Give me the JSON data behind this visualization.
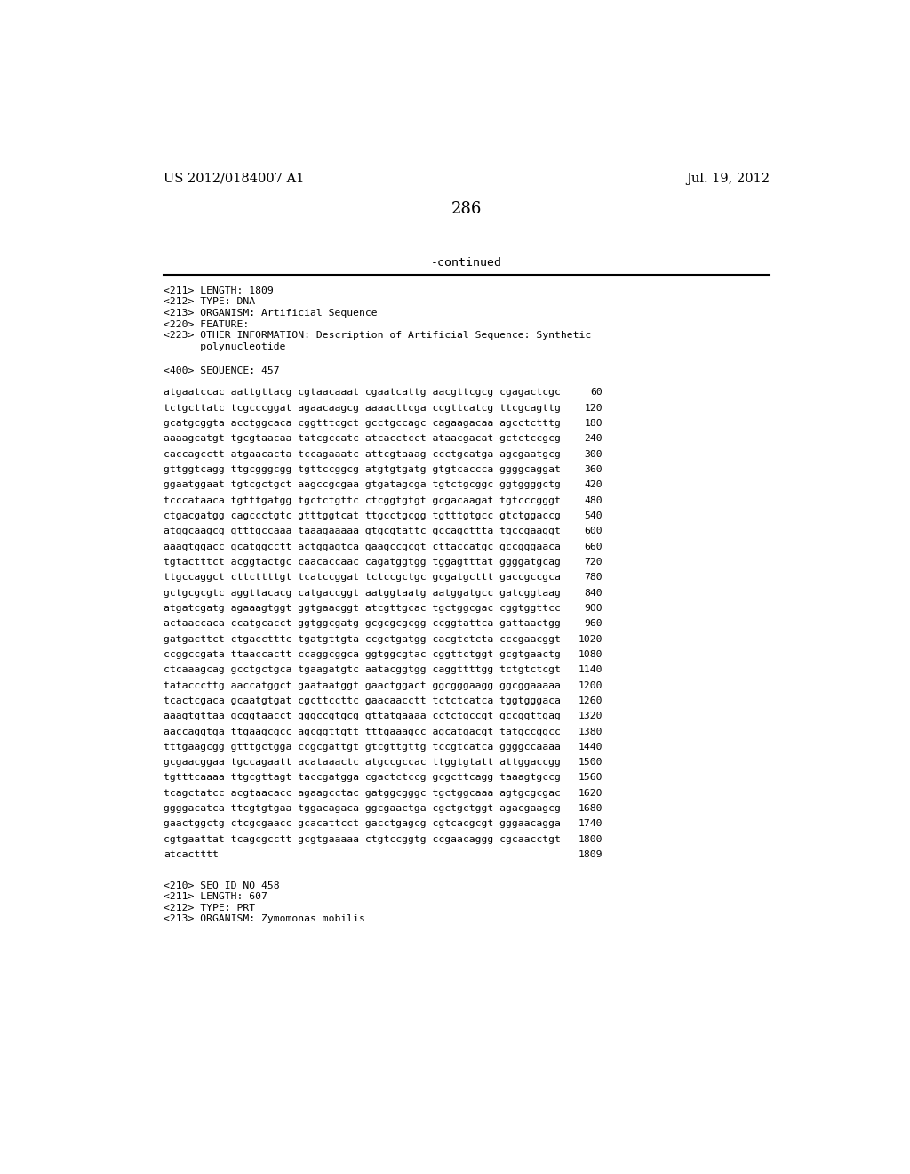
{
  "header_left": "US 2012/0184007 A1",
  "header_right": "Jul. 19, 2012",
  "page_number": "286",
  "continued_text": "-continued",
  "metadata_lines": [
    "<211> LENGTH: 1809",
    "<212> TYPE: DNA",
    "<213> ORGANISM: Artificial Sequence",
    "<220> FEATURE:",
    "<223> OTHER INFORMATION: Description of Artificial Sequence: Synthetic",
    "      polynucleotide"
  ],
  "sequence_header": "<400> SEQUENCE: 457",
  "sequence_lines": [
    [
      "atgaatccac aattgttacg cgtaacaaat cgaatcattg aacgttcgcg cgagactcgc",
      "60"
    ],
    [
      "tctgcttatc tcgcccggat agaacaagcg aaaacttcga ccgttcatcg ttcgcagttg",
      "120"
    ],
    [
      "gcatgcggta acctggcaca cggtttcgct gcctgccagc cagaagacaa agcctctttg",
      "180"
    ],
    [
      "aaaagcatgt tgcgtaacaa tatcgccatc atcacctcct ataacgacat gctctccgcg",
      "240"
    ],
    [
      "caccagcctt atgaacacta tccagaaatc attcgtaaag ccctgcatga agcgaatgcg",
      "300"
    ],
    [
      "gttggtcagg ttgcgggcgg tgttccggcg atgtgtgatg gtgtcaccca ggggcaggat",
      "360"
    ],
    [
      "ggaatggaat tgtcgctgct aagccgcgaa gtgatagcga tgtctgcggc ggtggggctg",
      "420"
    ],
    [
      "tcccataaca tgtttgatgg tgctctgttc ctcggtgtgt gcgacaagat tgtcccgggt",
      "480"
    ],
    [
      "ctgacgatgg cagccctgtc gtttggtcat ttgcctgcgg tgtttgtgcc gtctggaccg",
      "540"
    ],
    [
      "atggcaagcg gtttgccaaa taaagaaaaa gtgcgtattc gccagcttta tgccgaaggt",
      "600"
    ],
    [
      "aaagtggacc gcatggcctt actggagtca gaagccgcgt cttaccatgc gccgggaaca",
      "660"
    ],
    [
      "tgtactttct acggtactgc caacaccaac cagatggtgg tggagtttat ggggatgcag",
      "720"
    ],
    [
      "ttgccaggct cttcttttgt tcatccggat tctccgctgc gcgatgcttt gaccgccgca",
      "780"
    ],
    [
      "gctgcgcgtc aggttacacg catgaccggt aatggtaatg aatggatgcc gatcggtaag",
      "840"
    ],
    [
      "atgatcgatg agaaagtggt ggtgaacggt atcgttgcac tgctggcgac cggtggttcc",
      "900"
    ],
    [
      "actaaccaca ccatgcacct ggtggcgatg gcgcgcgcgg ccggtattca gattaactgg",
      "960"
    ],
    [
      "gatgacttct ctgacctttc tgatgttgta ccgctgatgg cacgtctcta cccgaacggt",
      "1020"
    ],
    [
      "ccggccgata ttaaccactt ccaggcggca ggtggcgtac cggttctggt gcgtgaactg",
      "1080"
    ],
    [
      "ctcaaagcag gcctgctgca tgaagatgtc aatacggtgg caggttttgg tctgtctcgt",
      "1140"
    ],
    [
      "tatacccttg aaccatggct gaataatggt gaactggact ggcgggaagg ggcggaaaaa",
      "1200"
    ],
    [
      "tcactcgaca gcaatgtgat cgcttccttc gaacaacctt tctctcatca tggtgggaca",
      "1260"
    ],
    [
      "aaagtgttaa gcggtaacct gggccgtgcg gttatgaaaa cctctgccgt gccggttgag",
      "1320"
    ],
    [
      "aaccaggtga ttgaagcgcc agcggttgtt tttgaaagcc agcatgacgt tatgccggcc",
      "1380"
    ],
    [
      "tttgaagcgg gtttgctgga ccgcgattgt gtcgttgttg tccgtcatca ggggccaaaa",
      "1440"
    ],
    [
      "gcgaacggaa tgccagaatt acataaactc atgccgccac ttggtgtatt attggaccgg",
      "1500"
    ],
    [
      "tgtttcaaaa ttgcgttagt taccgatgga cgactctccg gcgcttcagg taaagtgccg",
      "1560"
    ],
    [
      "tcagctatcc acgtaacacc agaagcctac gatggcgggc tgctggcaaa agtgcgcgac",
      "1620"
    ],
    [
      "ggggacatca ttcgtgtgaa tggacagaca ggcgaactga cgctgctggt agacgaagcg",
      "1680"
    ],
    [
      "gaactggctg ctcgcgaacc gcacattcct gacctgagcg cgtcacgcgt gggaacagga",
      "1740"
    ],
    [
      "cgtgaattat tcagcgcctt gcgtgaaaaa ctgtccggtg ccgaacaggg cgcaacctgt",
      "1800"
    ],
    [
      "atcactttt",
      "1809"
    ]
  ],
  "footer_lines": [
    "<210> SEQ ID NO 458",
    "<211> LENGTH: 607",
    "<212> TYPE: PRT",
    "<213> ORGANISM: Zymomonas mobilis"
  ],
  "background_color": "#ffffff",
  "text_color": "#000000"
}
